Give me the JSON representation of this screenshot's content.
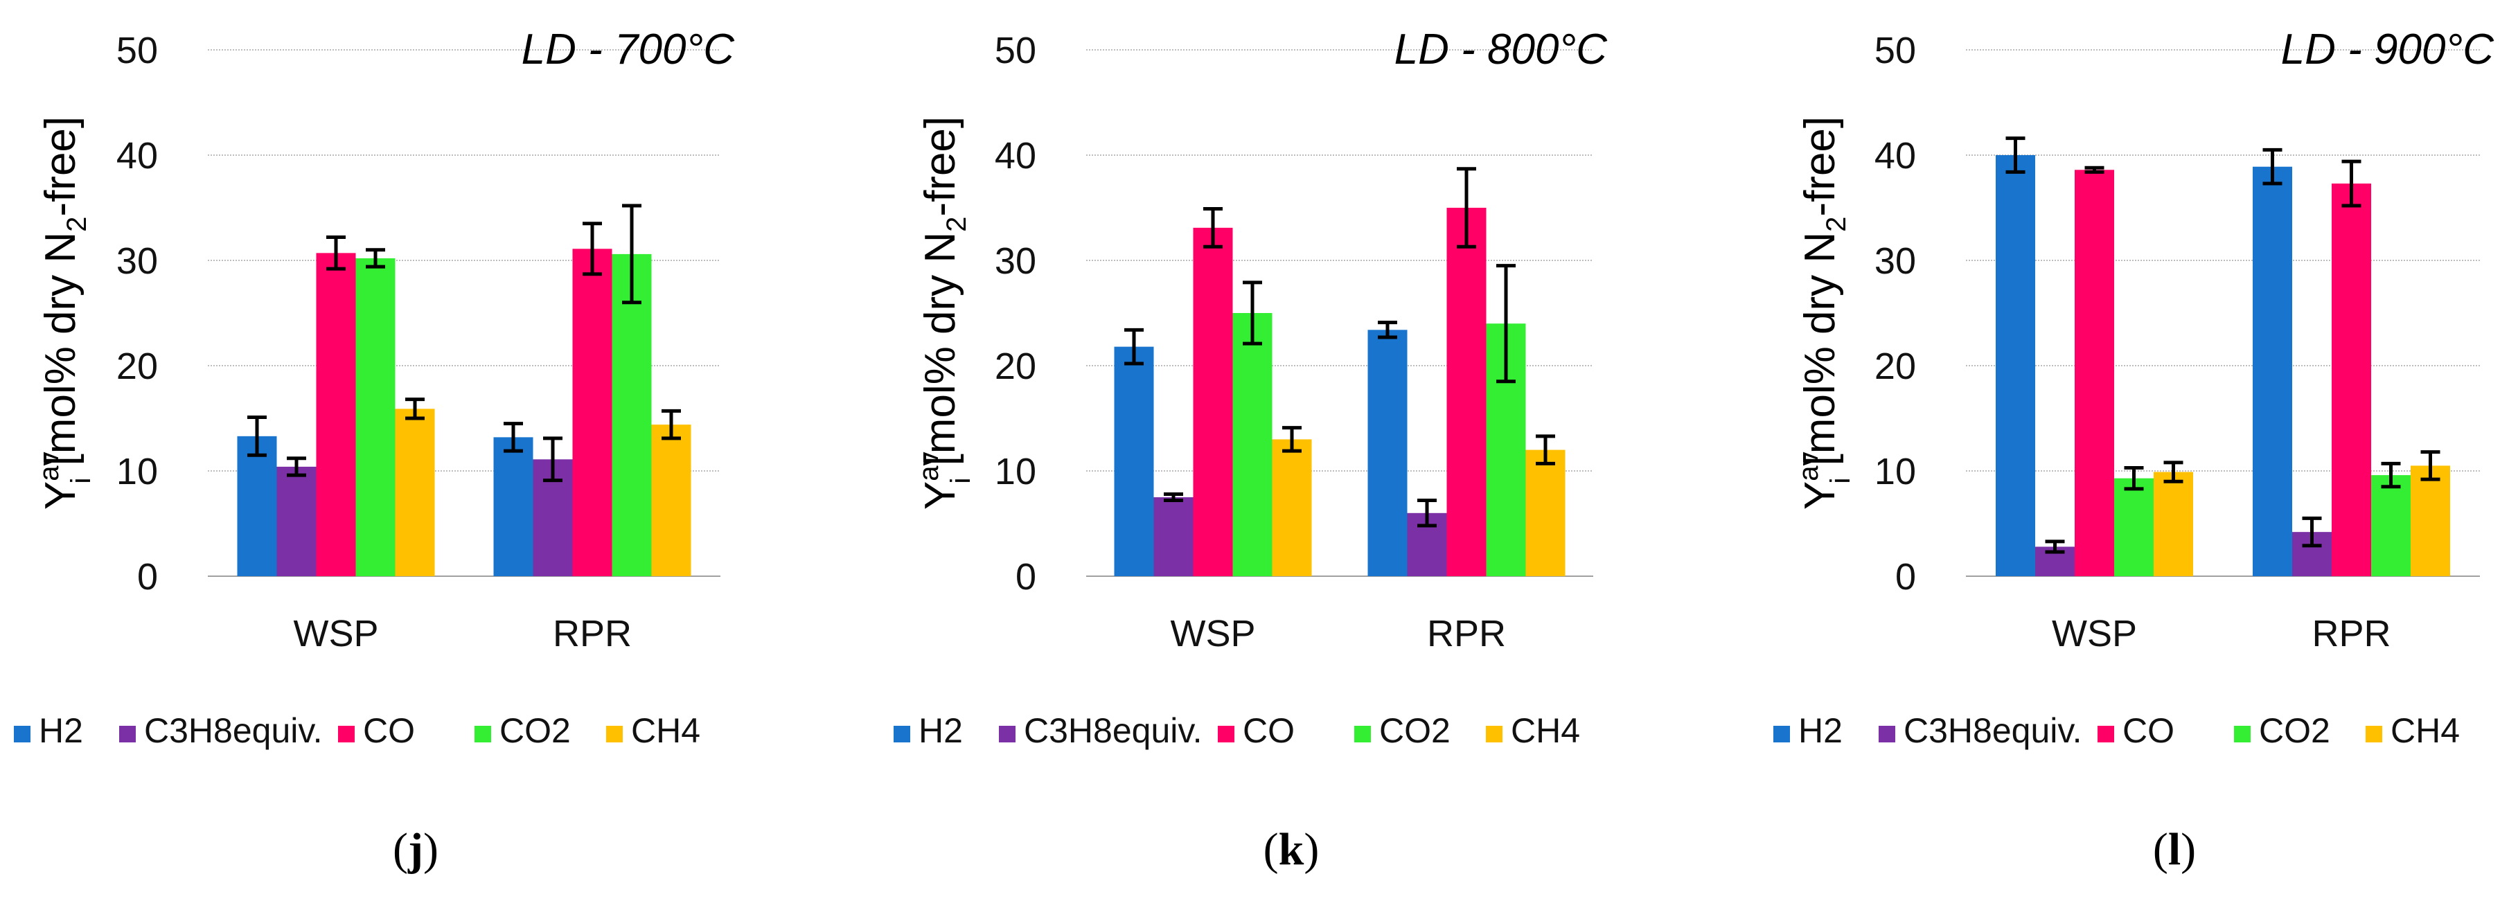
{
  "chart_data": [
    {
      "type": "bar",
      "title": "LD - 700°C",
      "panel_label": "j",
      "categories": [
        "WSP",
        "RPR"
      ],
      "ylabel": {
        "main": "Y",
        "sup": "av",
        "sub": "i",
        "rest": " [mol% dry N",
        "sub2": "2",
        "end": "-free]"
      },
      "ylim": [
        0,
        50
      ],
      "yticks": [
        0,
        10,
        20,
        30,
        40,
        50
      ],
      "grid": true,
      "legend_position": "bottom",
      "series": [
        {
          "name": "H2",
          "color": "#1874CD",
          "values": [
            13.3,
            13.2
          ],
          "errors": [
            1.8,
            1.3
          ]
        },
        {
          "name": "C3H8equiv.",
          "color": "#7B30A6",
          "values": [
            10.4,
            11.1
          ],
          "errors": [
            0.8,
            2.0
          ]
        },
        {
          "name": "CO",
          "color": "#FF0066",
          "values": [
            30.7,
            31.1
          ],
          "errors": [
            1.5,
            2.4
          ]
        },
        {
          "name": "CO2",
          "color": "#33EE33",
          "values": [
            30.2,
            30.6
          ],
          "errors": [
            0.8,
            4.6
          ]
        },
        {
          "name": "CH4",
          "color": "#FFC000",
          "values": [
            15.9,
            14.4
          ],
          "errors": [
            0.9,
            1.3
          ]
        }
      ]
    },
    {
      "type": "bar",
      "title": "LD - 800°C",
      "panel_label": "k",
      "categories": [
        "WSP",
        "RPR"
      ],
      "ylabel": {
        "main": "Y",
        "sup": "av",
        "sub": "i",
        "rest": " [mol% dry N",
        "sub2": "2",
        "end": "-free]"
      },
      "ylim": [
        0,
        50
      ],
      "yticks": [
        0,
        10,
        20,
        30,
        40,
        50
      ],
      "grid": true,
      "legend_position": "bottom",
      "series": [
        {
          "name": "H2",
          "color": "#1874CD",
          "values": [
            21.8,
            23.4
          ],
          "errors": [
            1.6,
            0.7
          ]
        },
        {
          "name": "C3H8equiv.",
          "color": "#7B30A6",
          "values": [
            7.5,
            6.0
          ],
          "errors": [
            0.3,
            1.2
          ]
        },
        {
          "name": "CO",
          "color": "#FF0066",
          "values": [
            33.1,
            35.0
          ],
          "errors": [
            1.8,
            3.7
          ]
        },
        {
          "name": "CO2",
          "color": "#33EE33",
          "values": [
            25.0,
            24.0
          ],
          "errors": [
            2.9,
            5.5
          ]
        },
        {
          "name": "CH4",
          "color": "#FFC000",
          "values": [
            13.0,
            12.0
          ],
          "errors": [
            1.1,
            1.3
          ]
        }
      ]
    },
    {
      "type": "bar",
      "title": "LD - 900°C",
      "panel_label": "l",
      "categories": [
        "WSP",
        "RPR"
      ],
      "ylabel": {
        "main": "Y",
        "sup": "av",
        "sub": "i",
        "rest": " [mol% dry N",
        "sub2": "2",
        "end": "-free]"
      },
      "ylim": [
        0,
        50
      ],
      "yticks": [
        0,
        10,
        20,
        30,
        40,
        50
      ],
      "grid": true,
      "legend_position": "bottom",
      "series": [
        {
          "name": "H2",
          "color": "#1874CD",
          "values": [
            40.0,
            38.9
          ],
          "errors": [
            1.6,
            1.6
          ]
        },
        {
          "name": "C3H8equiv.",
          "color": "#7B30A6",
          "values": [
            2.8,
            4.2
          ],
          "errors": [
            0.5,
            1.3
          ]
        },
        {
          "name": "CO",
          "color": "#FF0066",
          "values": [
            38.6,
            37.3
          ],
          "errors": [
            0.2,
            2.1
          ]
        },
        {
          "name": "CO2",
          "color": "#33EE33",
          "values": [
            9.3,
            9.6
          ],
          "errors": [
            1.0,
            1.1
          ]
        },
        {
          "name": "CH4",
          "color": "#FFC000",
          "values": [
            9.9,
            10.5
          ],
          "errors": [
            0.9,
            1.3
          ]
        }
      ]
    }
  ]
}
